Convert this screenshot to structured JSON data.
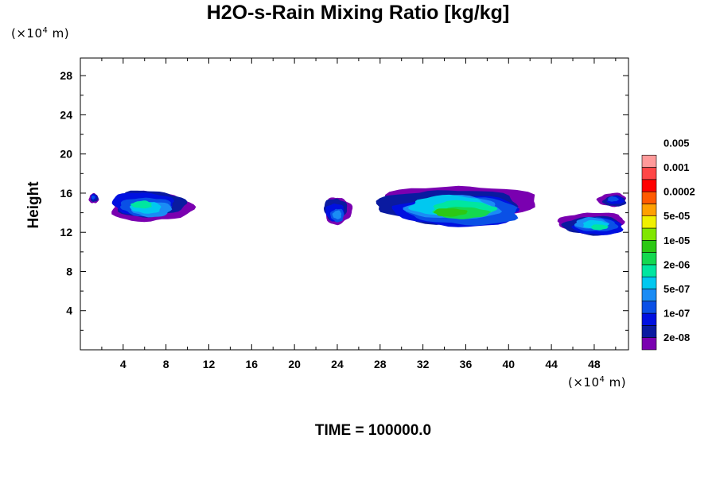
{
  "chart_data": {
    "type": "heatmap",
    "title": "H2O-s-Rain Mixing Ratio [kg/kg]",
    "xlabel": "",
    "ylabel": "Height",
    "x_unit": {
      "prefix": "(×10",
      "exp": "4",
      "suffix": " m)"
    },
    "y_unit": {
      "prefix": "(×10",
      "exp": "4",
      "suffix": " m)"
    },
    "xlim": [
      0,
      51.2
    ],
    "ylim": [
      0,
      29.8
    ],
    "x_ticks": [
      4,
      8,
      12,
      16,
      20,
      24,
      28,
      32,
      36,
      40,
      44,
      48
    ],
    "y_ticks": [
      4,
      8,
      12,
      16,
      20,
      24,
      28
    ],
    "colorbar": {
      "colors": [
        "#7a00b0",
        "#0a1aa0",
        "#0010e0",
        "#0a50e6",
        "#1a8cf5",
        "#00c8f0",
        "#00e6a0",
        "#14d850",
        "#2cc814",
        "#80e600",
        "#f0f000",
        "#ffa000",
        "#ff5a00",
        "#ff0000",
        "#ff4646",
        "#ff9a9a"
      ],
      "labels": [
        "2e-08",
        "1e-07",
        "5e-07",
        "2e-06",
        "1e-05",
        "5e-05",
        "0.0002",
        "0.001",
        "0.005"
      ]
    },
    "regions": [
      {
        "x_range": [
          0.8,
          1.7
        ],
        "y_range": [
          15.0,
          16.1
        ],
        "max_level": 3
      },
      {
        "x_range": [
          2.4,
          10.0
        ],
        "y_range": [
          13.1,
          16.4
        ],
        "max_level": 6
      },
      {
        "x_range": [
          22.6,
          25.2
        ],
        "y_range": [
          12.6,
          15.6
        ],
        "max_level": 4
      },
      {
        "x_range": [
          28.0,
          42.4
        ],
        "y_range": [
          12.4,
          16.6
        ],
        "max_level": 8
      },
      {
        "x_range": [
          45.0,
          51.2
        ],
        "y_range": [
          11.6,
          14.0
        ],
        "max_level": 6
      },
      {
        "x_range": [
          48.5,
          51.2
        ],
        "y_range": [
          14.6,
          16.1
        ],
        "max_level": 3
      }
    ],
    "time_label": "TIME = 100000.0"
  }
}
